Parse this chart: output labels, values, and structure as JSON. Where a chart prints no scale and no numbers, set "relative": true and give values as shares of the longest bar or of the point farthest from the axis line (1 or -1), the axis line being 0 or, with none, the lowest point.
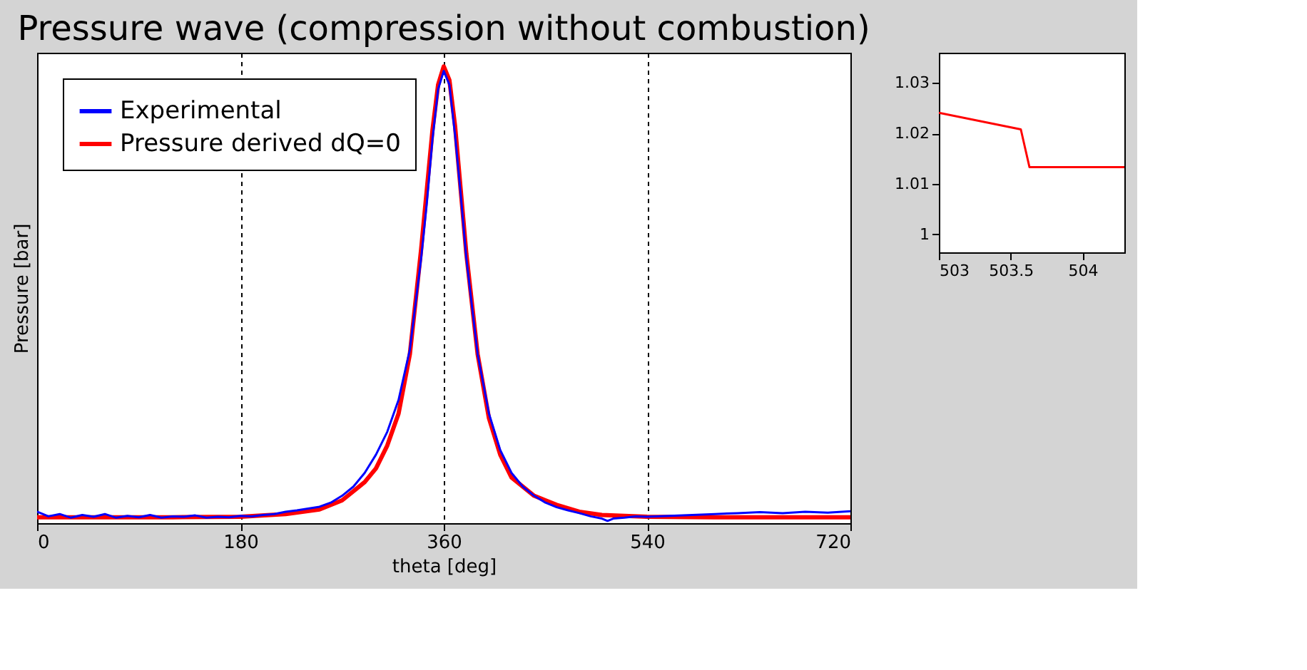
{
  "chart_data": [
    {
      "type": "line",
      "title": "Pressure wave (compression without combustion)",
      "xlabel": "theta [deg]",
      "ylabel": "Pressure [bar]",
      "relative": true,
      "xlim": [
        0,
        720
      ],
      "xticks": [
        0,
        180,
        360,
        540,
        720
      ],
      "grid": "x",
      "legend": "top left",
      "tick_labels": "x",
      "series": [
        {
          "name": "Experimental",
          "color": "#0000ff",
          "x": [
            0,
            10,
            20,
            30,
            40,
            50,
            60,
            70,
            80,
            90,
            100,
            110,
            120,
            130,
            140,
            150,
            160,
            170,
            180,
            190,
            200,
            210,
            220,
            230,
            240,
            250,
            260,
            270,
            280,
            290,
            300,
            310,
            320,
            330,
            340,
            345,
            350,
            355,
            360,
            365,
            370,
            375,
            380,
            390,
            400,
            410,
            420,
            430,
            440,
            450,
            460,
            470,
            480,
            490,
            500,
            505,
            510,
            520,
            530,
            540,
            560,
            580,
            600,
            620,
            640,
            660,
            680,
            700,
            720
          ],
          "values": [
            0.025,
            0.015,
            0.02,
            0.012,
            0.018,
            0.014,
            0.02,
            0.012,
            0.016,
            0.013,
            0.018,
            0.012,
            0.015,
            0.014,
            0.017,
            0.012,
            0.014,
            0.013,
            0.016,
            0.015,
            0.018,
            0.02,
            0.025,
            0.028,
            0.032,
            0.036,
            0.045,
            0.06,
            0.08,
            0.11,
            0.15,
            0.2,
            0.27,
            0.38,
            0.58,
            0.7,
            0.84,
            0.95,
            0.99,
            0.96,
            0.85,
            0.72,
            0.58,
            0.37,
            0.24,
            0.16,
            0.11,
            0.08,
            0.06,
            0.045,
            0.035,
            0.028,
            0.022,
            0.015,
            0.01,
            0.005,
            0.01,
            0.012,
            0.015,
            0.014,
            0.016,
            0.018,
            0.02,
            0.022,
            0.024,
            0.022,
            0.025,
            0.023,
            0.026
          ]
        },
        {
          "name": "Pressure derived dQ=0",
          "color": "#ff0000",
          "x": [
            0,
            60,
            120,
            180,
            220,
            250,
            270,
            290,
            300,
            310,
            320,
            330,
            340,
            345,
            350,
            355,
            360,
            365,
            370,
            375,
            380,
            390,
            400,
            410,
            420,
            440,
            460,
            480,
            500,
            540,
            600,
            660,
            720
          ],
          "values": [
            0.013,
            0.013,
            0.013,
            0.014,
            0.02,
            0.03,
            0.05,
            0.09,
            0.12,
            0.17,
            0.24,
            0.37,
            0.6,
            0.73,
            0.86,
            0.96,
            1,
            0.97,
            0.87,
            0.73,
            0.59,
            0.37,
            0.23,
            0.15,
            0.1,
            0.06,
            0.04,
            0.025,
            0.018,
            0.014,
            0.013,
            0.013,
            0.013
          ]
        }
      ]
    },
    {
      "type": "line",
      "xlim": [
        503,
        504.29
      ],
      "xticks": [
        503,
        503.5,
        504
      ],
      "ylim": [
        0.9964,
        1.036
      ],
      "yticks": [
        1,
        1.01,
        1.02,
        1.03
      ],
      "series": [
        {
          "color": "#ff0000",
          "x": [
            503,
            503.57,
            503.63,
            504.29
          ],
          "values": [
            1.0241,
            1.0208,
            1.0133,
            1.0133
          ]
        }
      ]
    }
  ]
}
